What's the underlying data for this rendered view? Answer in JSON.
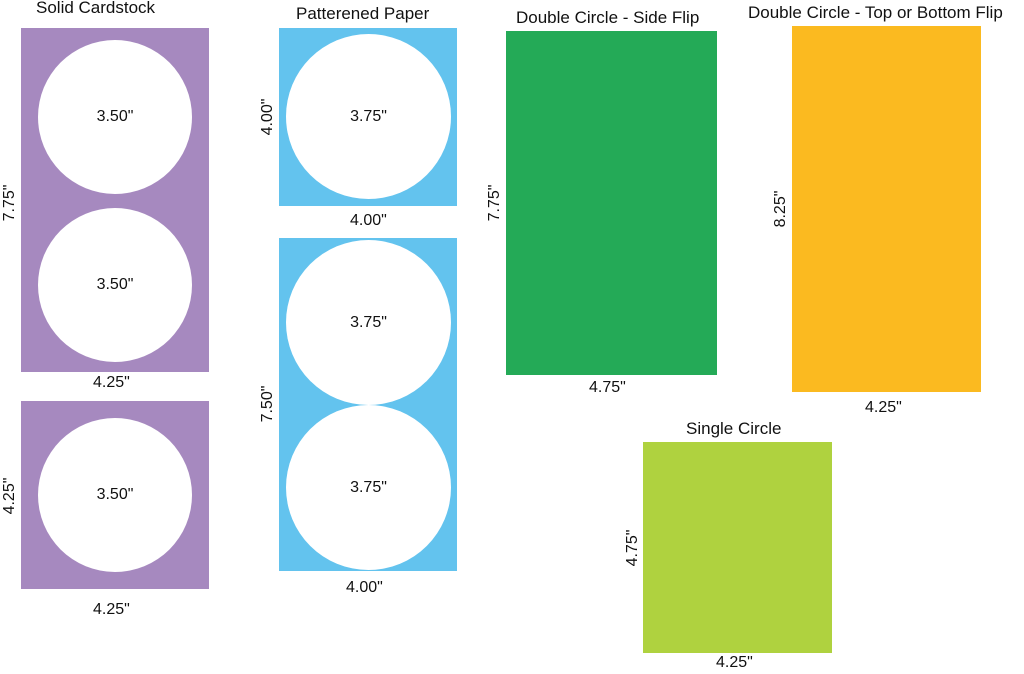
{
  "colors": {
    "purple": "#A689BF",
    "blue": "#63C3EE",
    "green": "#24AA57",
    "orange": "#FBBA20",
    "lime": "#AFD23F"
  },
  "solid_cardstock": {
    "title": "Solid Cardstock",
    "panel_tall": {
      "height_label": "7.75\"",
      "width_label": "4.25\"",
      "circles": [
        "3.50\"",
        "3.50\""
      ]
    },
    "panel_short": {
      "height_label": "4.25\"",
      "width_label": "4.25\"",
      "circles": [
        "3.50\""
      ]
    }
  },
  "patterned_paper": {
    "title": "Patterened Paper",
    "panel_short": {
      "height_label": "4.00\"",
      "width_label": "4.00\"",
      "circles": [
        "3.75\""
      ]
    },
    "panel_tall": {
      "height_label": "7.50\"",
      "width_label": "4.00\"",
      "circles": [
        "3.75\"",
        "3.75\""
      ]
    }
  },
  "double_side_flip": {
    "title": "Double Circle - Side Flip",
    "height_label": "7.75\"",
    "width_label": "4.75\""
  },
  "double_top_bottom_flip": {
    "title": "Double Circle - Top or Bottom Flip",
    "height_label": "8.25\"",
    "width_label": "4.25\""
  },
  "single_circle": {
    "title": "Single Circle",
    "height_label": "4.75\"",
    "width_label": "4.25\""
  }
}
